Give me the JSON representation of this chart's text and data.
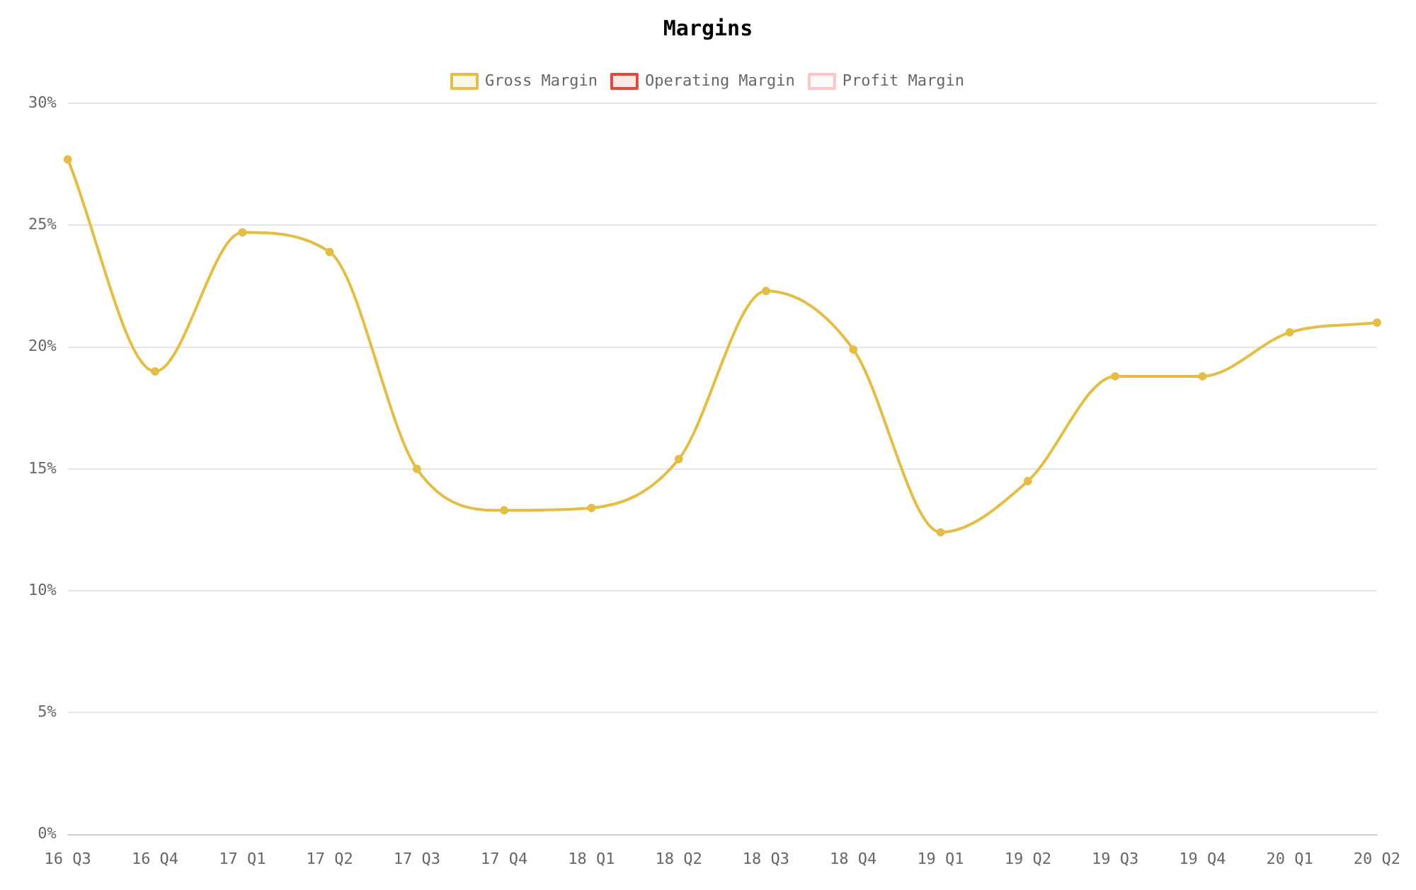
{
  "chart_data": {
    "type": "line",
    "title": "Margins",
    "categories": [
      "16 Q3",
      "16 Q4",
      "17 Q1",
      "17 Q2",
      "17 Q3",
      "17 Q4",
      "18 Q1",
      "18 Q2",
      "18 Q3",
      "18 Q4",
      "19 Q1",
      "19 Q2",
      "19 Q3",
      "19 Q4",
      "20 Q1",
      "20 Q2"
    ],
    "series": [
      {
        "name": "Gross Margin",
        "color": "#e3bd45",
        "values": [
          27.7,
          19.0,
          24.7,
          23.9,
          15.0,
          13.3,
          13.4,
          15.4,
          22.3,
          19.9,
          12.4,
          14.5,
          18.8,
          18.8,
          20.6,
          21.0
        ]
      },
      {
        "name": "Operating Margin",
        "color": "#e0483e",
        "values": [
          null,
          null,
          null,
          null,
          null,
          null,
          null,
          null,
          null,
          null,
          null,
          null,
          null,
          null,
          null,
          null
        ]
      },
      {
        "name": "Profit Margin",
        "color": "#f8c8c8",
        "values": [
          null,
          null,
          null,
          null,
          null,
          null,
          null,
          null,
          null,
          null,
          null,
          null,
          null,
          null,
          null,
          null
        ]
      }
    ],
    "ylim": [
      0,
      30
    ],
    "yticks": [
      {
        "value": 0,
        "label": "0%"
      },
      {
        "value": 5,
        "label": "5%"
      },
      {
        "value": 10,
        "label": "10%"
      },
      {
        "value": 15,
        "label": "15%"
      },
      {
        "value": 20,
        "label": "20%"
      },
      {
        "value": 25,
        "label": "25%"
      },
      {
        "value": 30,
        "label": "30%"
      }
    ],
    "grid": "y",
    "legend": "top",
    "marker": "circle"
  }
}
